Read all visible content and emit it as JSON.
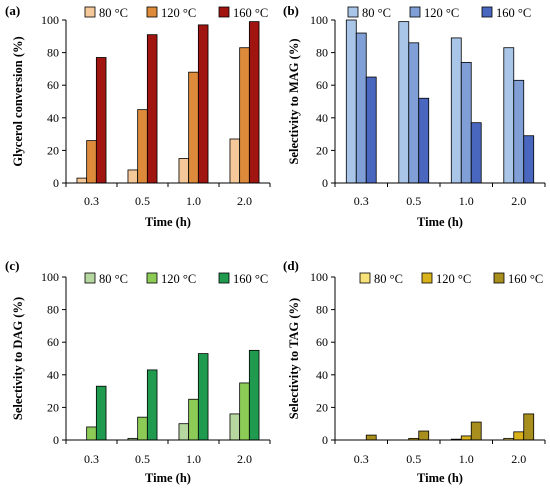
{
  "chart_data": [
    {
      "type": "bar",
      "panel_label": "(a)",
      "categories": [
        "0.3",
        "0.5",
        "1.0",
        "2.0"
      ],
      "series": [
        {
          "name": "80 °C",
          "values": [
            3,
            8,
            15,
            27
          ],
          "color": "#f5c89a"
        },
        {
          "name": "120 °C",
          "values": [
            26,
            45,
            68,
            83
          ],
          "color": "#dd8a3a"
        },
        {
          "name": "160 °C",
          "values": [
            77,
            91,
            97,
            99
          ],
          "color": "#a01510"
        }
      ],
      "xlabel": "Time (h)",
      "ylabel": "Glycerol conversion (%)",
      "ylim": [
        0,
        100
      ],
      "yticks": [
        0,
        20,
        40,
        60,
        80,
        100
      ],
      "legend": "top"
    },
    {
      "type": "bar",
      "panel_label": "(b)",
      "categories": [
        "0.3",
        "0.5",
        "1.0",
        "2.0"
      ],
      "series": [
        {
          "name": "80 °C",
          "values": [
            100,
            99,
            89,
            83
          ],
          "color": "#a9c5e8"
        },
        {
          "name": "120 °C",
          "values": [
            92,
            86,
            74,
            63
          ],
          "color": "#7f9fd6"
        },
        {
          "name": "160 °C",
          "values": [
            65,
            52,
            37,
            29
          ],
          "color": "#4a67c0"
        }
      ],
      "xlabel": "Time (h)",
      "ylabel": "Selectivity to MAG (%)",
      "ylim": [
        0,
        100
      ],
      "yticks": [
        0,
        20,
        40,
        60,
        80,
        100
      ],
      "legend": "top"
    },
    {
      "type": "bar",
      "panel_label": "(c)",
      "categories": [
        "0.3",
        "0.5",
        "1.0",
        "2.0"
      ],
      "series": [
        {
          "name": "80 °C",
          "values": [
            0,
            1,
            10,
            16
          ],
          "color": "#b6d7a0"
        },
        {
          "name": "120 °C",
          "values": [
            8,
            14,
            25,
            35
          ],
          "color": "#8dcb57"
        },
        {
          "name": "160 °C",
          "values": [
            33,
            43,
            53,
            55
          ],
          "color": "#1f9a4e"
        }
      ],
      "xlabel": "Time (h)",
      "ylabel": "Selectivity to DAG (%)",
      "ylim": [
        0,
        100
      ],
      "yticks": [
        0,
        20,
        40,
        60,
        80,
        100
      ],
      "legend": "top"
    },
    {
      "type": "bar",
      "panel_label": "(d)",
      "categories": [
        "0.3",
        "0.5",
        "1.0",
        "2.0"
      ],
      "series": [
        {
          "name": "80 °C",
          "values": [
            0,
            0,
            0.5,
            1
          ],
          "color": "#f7e27a"
        },
        {
          "name": "120 °C",
          "values": [
            0,
            1,
            2.5,
            5
          ],
          "color": "#d9b21b"
        },
        {
          "name": "160 °C",
          "values": [
            3,
            5.5,
            11,
            16
          ],
          "color": "#a88e1c"
        }
      ],
      "xlabel": "Time (h)",
      "ylabel": "Selectivity to TAG (%)",
      "ylim": [
        0,
        100
      ],
      "yticks": [
        0,
        20,
        40,
        60,
        80,
        100
      ],
      "legend": "top"
    }
  ]
}
